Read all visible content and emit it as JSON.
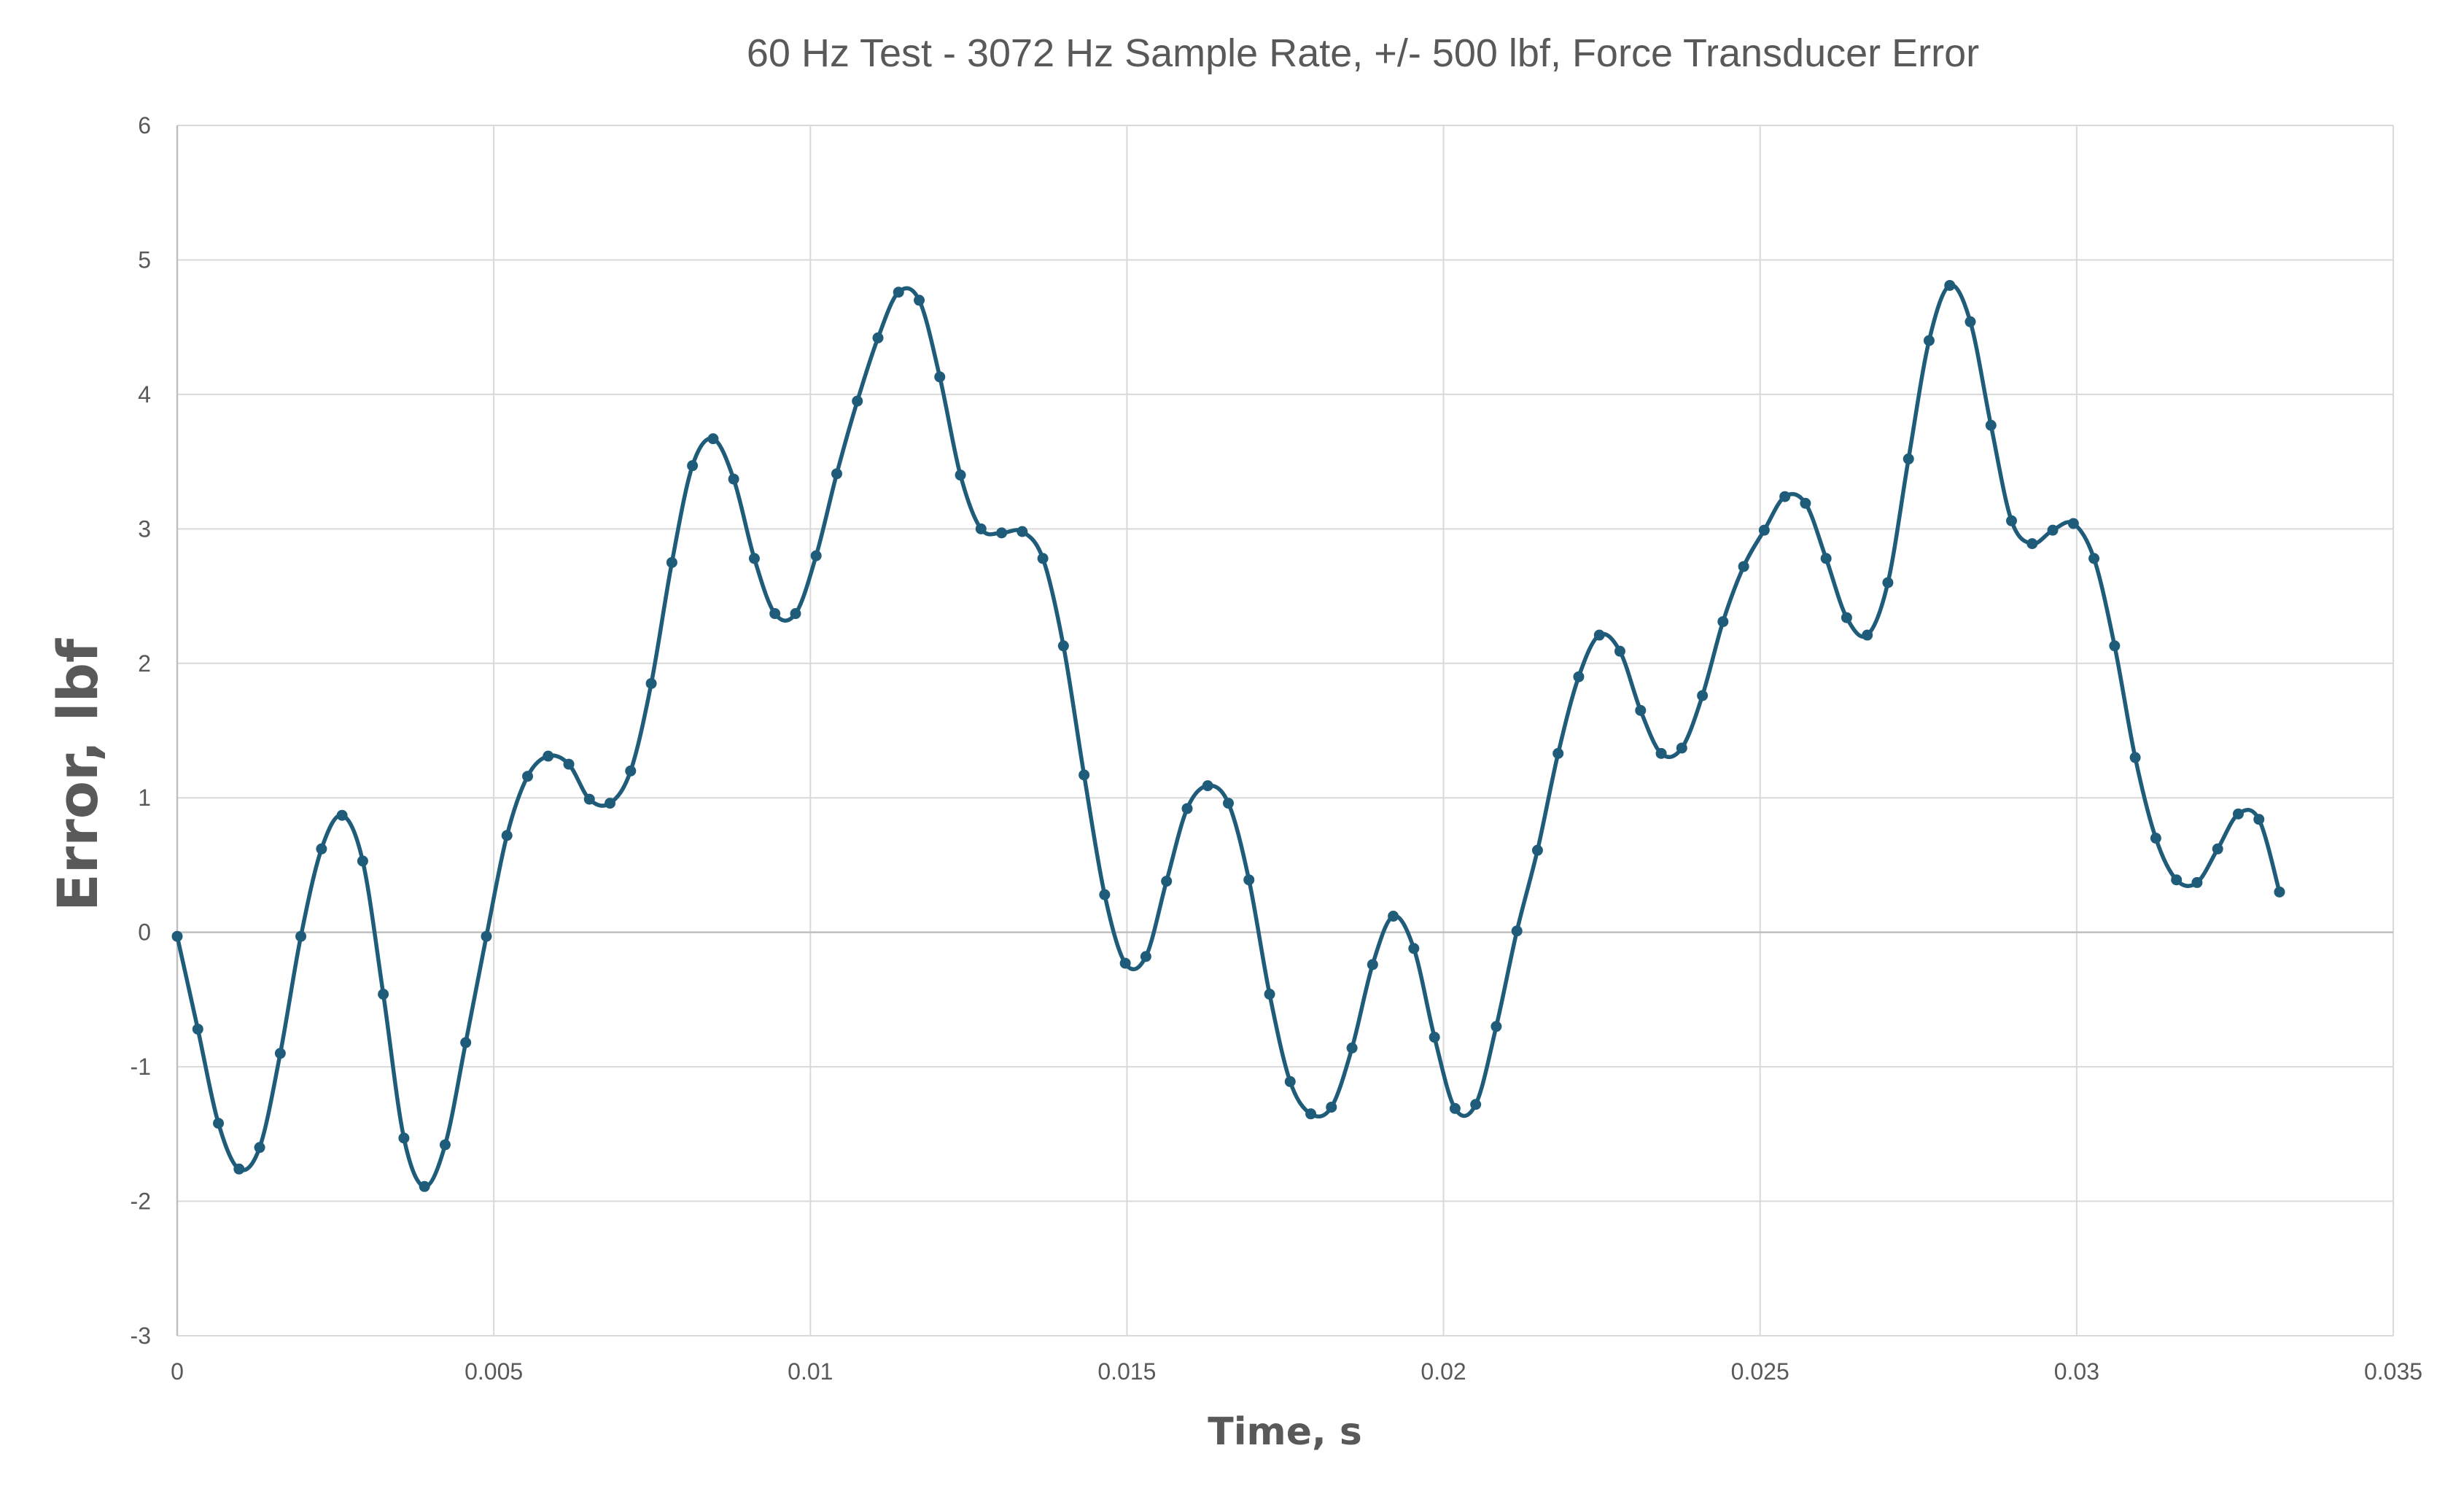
{
  "chart_data": {
    "type": "scatter",
    "title": "60 Hz Test - 3072 Hz Sample Rate, +/- 500 lbf, Force Transducer Error",
    "xlabel": "Time, s",
    "ylabel": "Error, lbf",
    "xlim": [
      0,
      0.035
    ],
    "ylim": [
      -3,
      6
    ],
    "xticks": [
      0,
      0.005,
      0.01,
      0.015,
      0.02,
      0.025,
      0.03,
      0.035
    ],
    "xtick_labels": [
      "0",
      "0.005",
      "0.01",
      "0.015",
      "0.02",
      "0.025",
      "0.03",
      "0.035"
    ],
    "yticks": [
      -3,
      -2,
      -1,
      0,
      1,
      2,
      3,
      4,
      5,
      6
    ],
    "ytick_labels": [
      "-3",
      "-2",
      "-1",
      "0",
      "1",
      "2",
      "3",
      "4",
      "5",
      "6"
    ],
    "grid": true,
    "legend": "none",
    "series": [
      {
        "color": "#1f5c7a",
        "style": "smoothed line with markers",
        "x": [
          0,
          0.000326,
          0.000651,
          0.000977,
          0.001302,
          0.001628,
          0.001953,
          0.002279,
          0.002604,
          0.00293,
          0.003255,
          0.003581,
          0.003906,
          0.004232,
          0.004557,
          0.004883,
          0.005208,
          0.005534,
          0.005859,
          0.006185,
          0.00651,
          0.006836,
          0.007161,
          0.007487,
          0.007813,
          0.008138,
          0.008464,
          0.008789,
          0.009115,
          0.00944,
          0.009766,
          0.010091,
          0.010417,
          0.010742,
          0.011068,
          0.011393,
          0.011719,
          0.012044,
          0.01237,
          0.012695,
          0.013021,
          0.013346,
          0.013672,
          0.013997,
          0.014323,
          0.014648,
          0.014974,
          0.015299,
          0.015625,
          0.015951,
          0.016276,
          0.016602,
          0.016927,
          0.017253,
          0.017578,
          0.017904,
          0.018229,
          0.018555,
          0.01888,
          0.019206,
          0.019531,
          0.019857,
          0.020182,
          0.020508,
          0.020833,
          0.021159,
          0.021484,
          0.02181,
          0.022135,
          0.022461,
          0.022786,
          0.023112,
          0.023438,
          0.023763,
          0.024089,
          0.024414,
          0.02474,
          0.025065,
          0.025391,
          0.025716,
          0.026042,
          0.026367,
          0.026693,
          0.027018,
          0.027344,
          0.027669,
          0.027995,
          0.02832,
          0.028646,
          0.028971,
          0.029297,
          0.029622,
          0.029948,
          0.030273,
          0.030599,
          0.030924,
          0.03125,
          0.031576,
          0.031901,
          0.032227,
          0.032552,
          0.032878,
          0.033203
        ],
        "y": [
          -0.03,
          -0.72,
          -1.42,
          -1.76,
          -1.6,
          -0.9,
          -0.03,
          0.62,
          0.87,
          0.53,
          -0.46,
          -1.53,
          -1.89,
          -1.58,
          -0.82,
          -0.03,
          0.72,
          1.16,
          1.31,
          1.25,
          0.99,
          0.96,
          1.2,
          1.85,
          2.75,
          3.47,
          3.67,
          3.37,
          2.78,
          2.37,
          2.37,
          2.8,
          3.41,
          3.95,
          4.42,
          4.76,
          4.7,
          4.13,
          3.4,
          3.0,
          2.97,
          2.98,
          2.78,
          2.13,
          1.17,
          0.28,
          -0.23,
          -0.18,
          0.38,
          0.92,
          1.09,
          0.96,
          0.39,
          -0.46,
          -1.11,
          -1.35,
          -1.3,
          -0.86,
          -0.24,
          0.12,
          -0.12,
          -0.78,
          -1.31,
          -1.28,
          -0.7,
          0.01,
          0.61,
          1.33,
          1.9,
          2.21,
          2.09,
          1.65,
          1.33,
          1.37,
          1.76,
          2.31,
          2.72,
          2.99,
          3.24,
          3.19,
          2.78,
          2.34,
          2.21,
          2.6,
          3.52,
          4.4,
          4.81,
          4.54,
          3.77,
          3.06,
          2.89,
          2.99,
          3.04,
          2.78,
          2.13,
          1.3,
          0.7,
          0.39,
          0.37,
          0.62,
          0.88,
          0.84,
          0.3
        ]
      }
    ]
  }
}
